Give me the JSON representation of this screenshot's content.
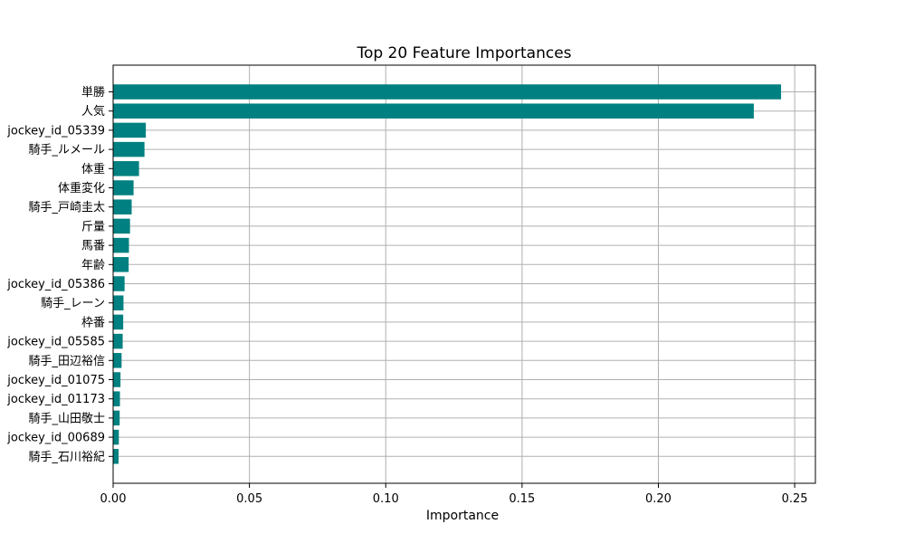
{
  "chart_data": {
    "type": "bar",
    "orientation": "horizontal",
    "title": "Top 20 Feature Importances",
    "xlabel": "Importance",
    "ylabel": "",
    "xlim": [
      0,
      0.2576
    ],
    "xticks": [
      0.0,
      0.05,
      0.1,
      0.15,
      0.2,
      0.25
    ],
    "xtick_labels": [
      "0.00",
      "0.05",
      "0.10",
      "0.15",
      "0.20",
      "0.25"
    ],
    "grid": true,
    "bar_color": "#008080",
    "categories": [
      "単勝",
      "人気",
      "jockey_id_05339",
      "騎手_ルメール",
      "体重",
      "体重変化",
      "騎手_戸崎圭太",
      "斤量",
      "馬番",
      "年齢",
      "jockey_id_05386",
      "騎手_レーン",
      "枠番",
      "jockey_id_05585",
      "騎手_田辺裕信",
      "jockey_id_01075",
      "jockey_id_01173",
      "騎手_山田敬士",
      "jockey_id_00689",
      "騎手_石川裕紀"
    ],
    "values": [
      0.245,
      0.235,
      0.012,
      0.0115,
      0.0095,
      0.0075,
      0.0068,
      0.0062,
      0.0058,
      0.0057,
      0.0042,
      0.0038,
      0.0037,
      0.0035,
      0.0031,
      0.0027,
      0.0025,
      0.0024,
      0.0021,
      0.002
    ]
  }
}
